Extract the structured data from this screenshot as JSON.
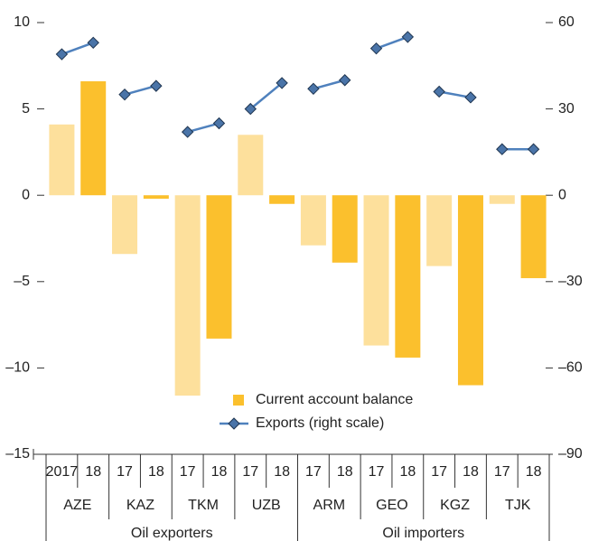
{
  "chart_data": {
    "type": "bar_line",
    "categories": [
      "2017",
      "18",
      "17",
      "18",
      "17",
      "18",
      "17",
      "18",
      "17",
      "18",
      "17",
      "18",
      "17",
      "18",
      "17",
      "18"
    ],
    "countries": [
      "AZE",
      "KAZ",
      "TKM",
      "UZB",
      "ARM",
      "GEO",
      "KGZ",
      "TJK"
    ],
    "blocs": [
      "Oil exporters",
      "Oil importers"
    ],
    "series": [
      {
        "name": "Current account balance",
        "type": "bar",
        "color": "#fbc02d",
        "colors": [
          "#fde09c",
          "#fbc02d"
        ],
        "values": [
          4.1,
          6.6,
          -3.4,
          -0.2,
          -11.6,
          -8.3,
          3.5,
          -0.5,
          -2.9,
          -3.9,
          -8.7,
          -9.4,
          -4.1,
          -11.0,
          -0.5,
          -4.8
        ]
      },
      {
        "name": "Exports (right scale)",
        "type": "line",
        "axis": "y2",
        "color": "#4f81bd",
        "marker_color": "#4a74a8",
        "values": [
          49,
          53,
          35,
          38,
          22,
          25,
          30,
          39,
          37,
          40,
          51,
          55,
          36,
          34,
          16,
          16
        ]
      }
    ],
    "ylim": [
      -15,
      10
    ],
    "yticks": [
      {
        "value": -15,
        "label": "–15"
      },
      {
        "value": -10,
        "label": "–10"
      },
      {
        "value": -5,
        "label": "–5"
      },
      0,
      5,
      10
    ],
    "y2lim": [
      -90,
      60
    ],
    "y2ticks": [
      {
        "value": -90,
        "label": "–90"
      },
      {
        "value": -60,
        "label": "–60"
      },
      {
        "value": -30,
        "label": "–30"
      },
      0,
      30,
      60
    ]
  }
}
